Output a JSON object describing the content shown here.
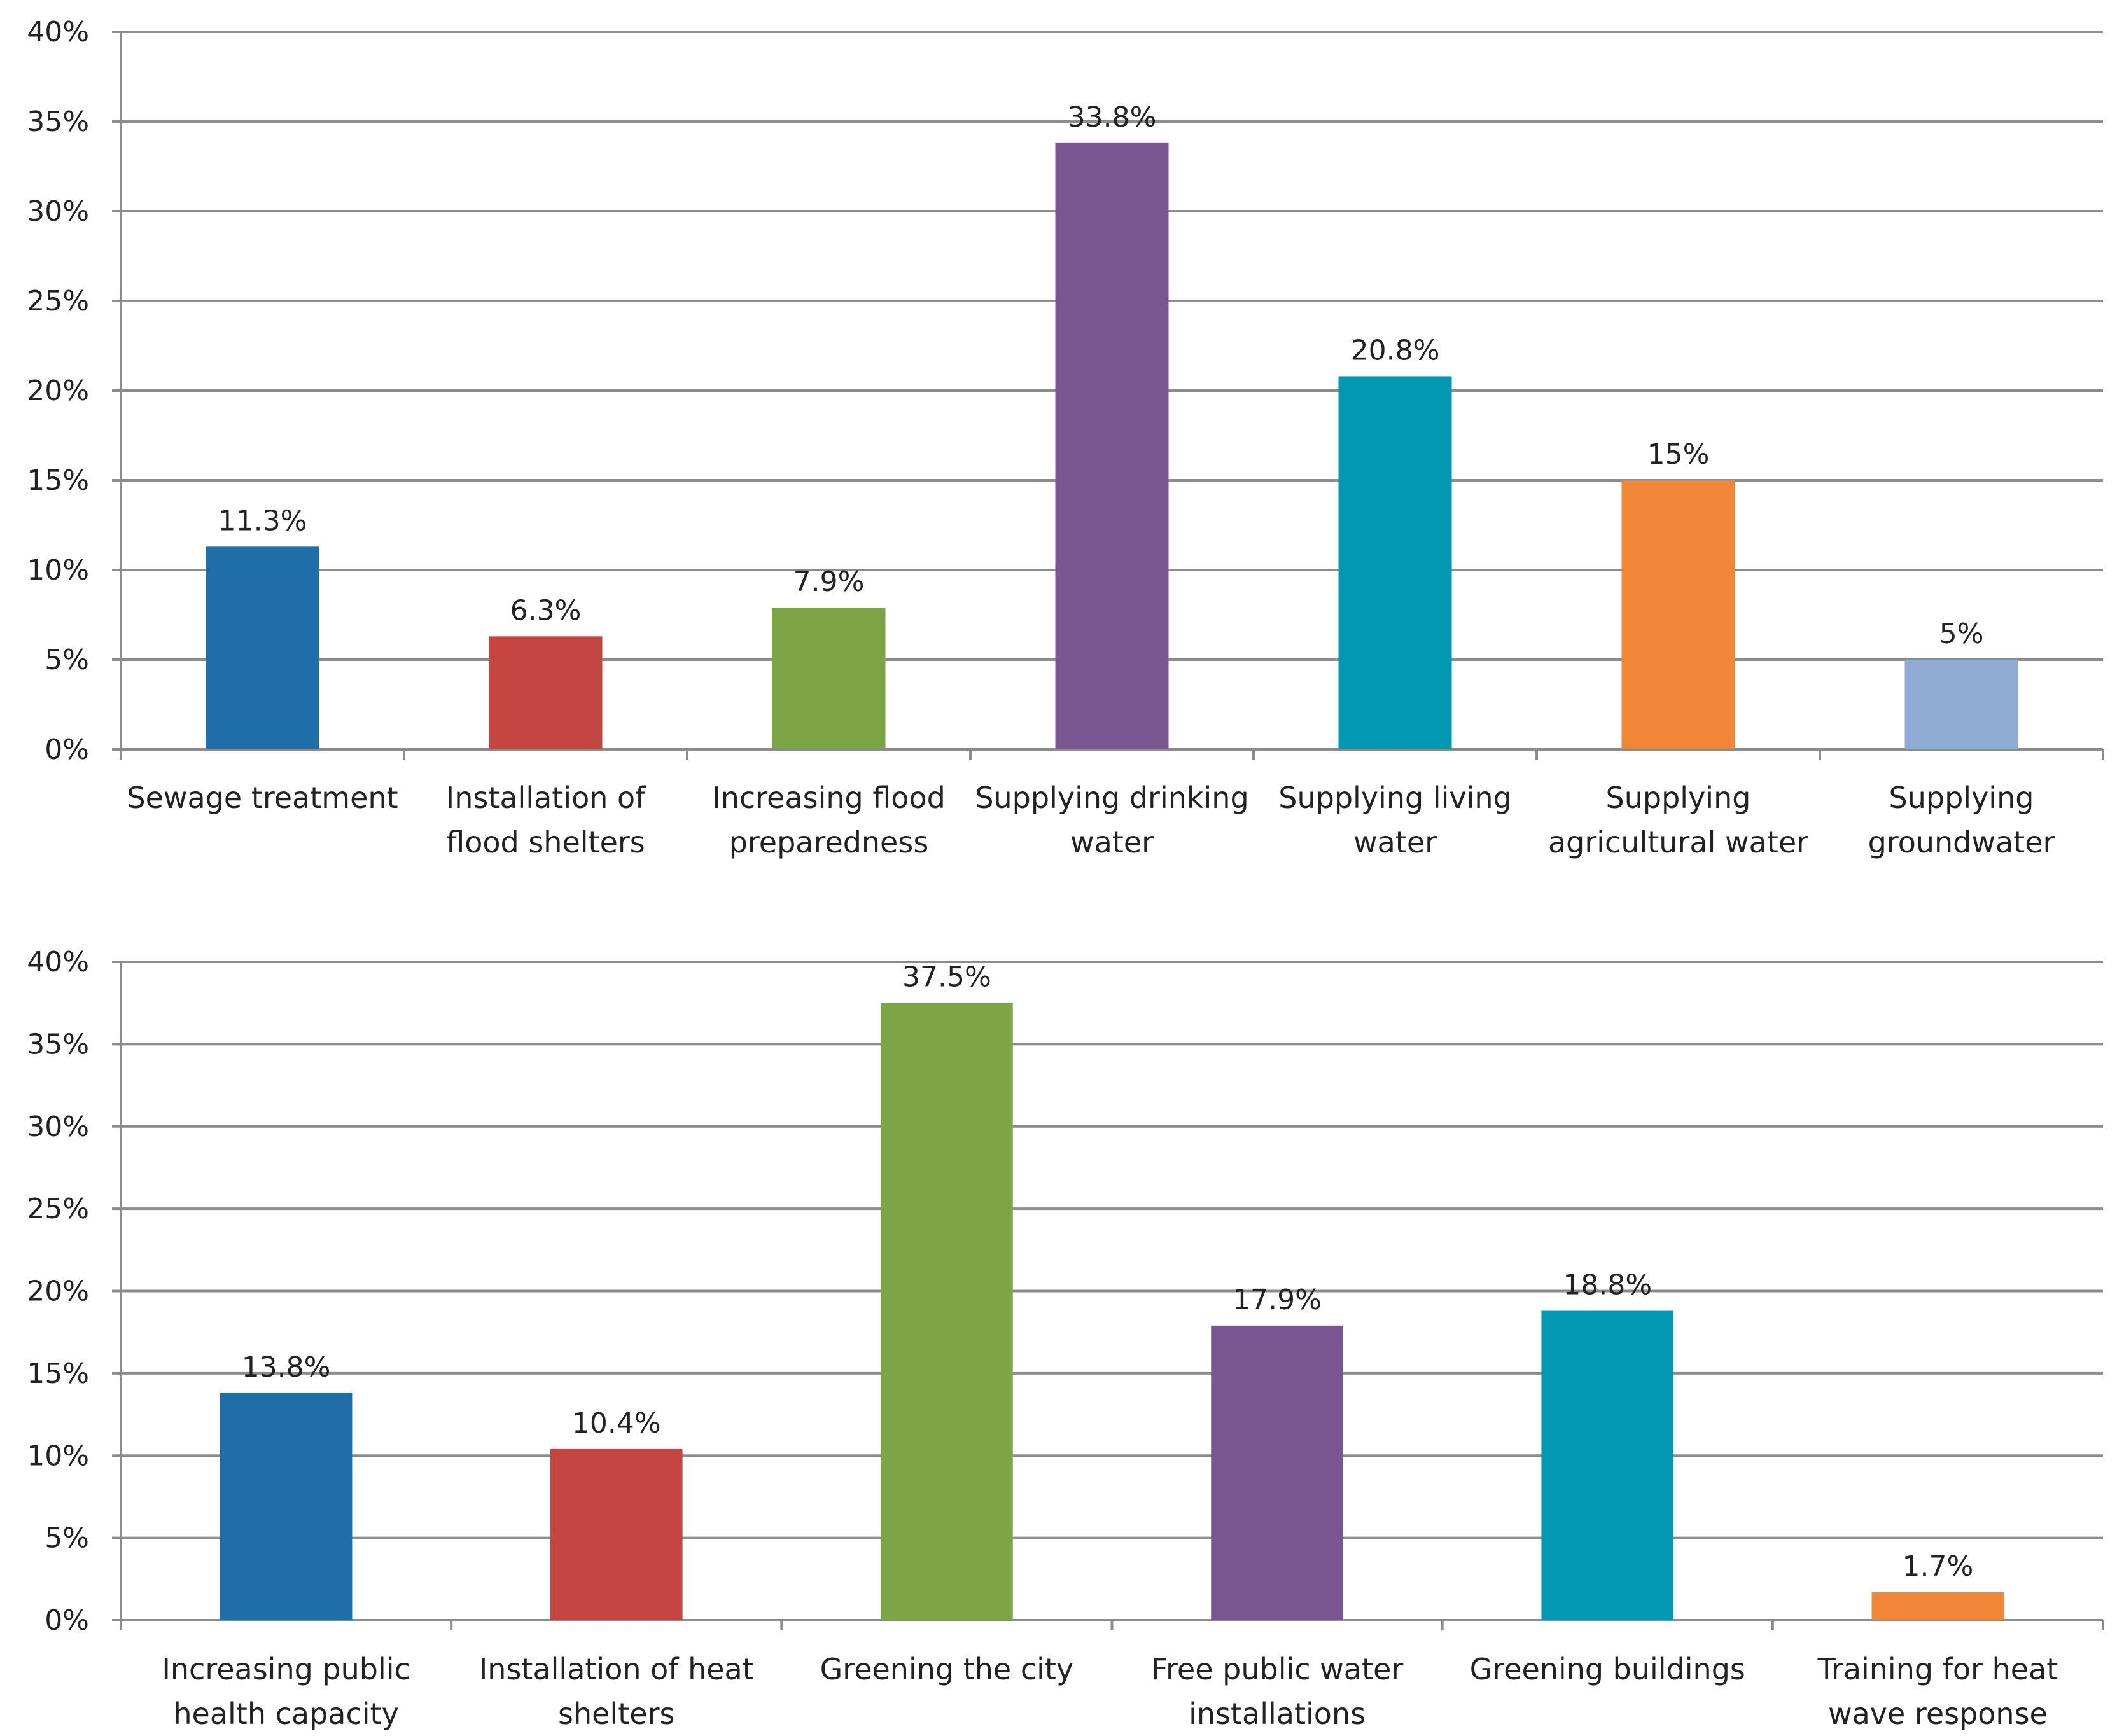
{
  "chart_data": [
    {
      "type": "bar",
      "title": "",
      "xlabel": "",
      "ylabel": "",
      "ylim": [
        0,
        40
      ],
      "yticks": [
        "0%",
        "5%",
        "10%",
        "15%",
        "20%",
        "25%",
        "30%",
        "35%",
        "40%"
      ],
      "grid": true,
      "legend": "none",
      "categories": [
        [
          "Sewage treatment"
        ],
        [
          "Installation of",
          "flood shelters"
        ],
        [
          "Increasing flood",
          "preparedness"
        ],
        [
          "Supplying drinking",
          "water"
        ],
        [
          "Supplying living",
          "water"
        ],
        [
          "Supplying",
          "agricultural water"
        ],
        [
          "Supplying",
          "groundwater"
        ]
      ],
      "values": [
        11.3,
        6.3,
        7.9,
        33.8,
        20.8,
        15,
        5
      ],
      "data_labels": [
        "11.3%",
        "6.3%",
        "7.9%",
        "33.8%",
        "20.8%",
        "15%",
        "5%"
      ],
      "colors": [
        "#1f6ea8",
        "#c44541",
        "#7ca645",
        "#7a5691",
        "#0098b3",
        "#f18637",
        "#8fadd4"
      ]
    },
    {
      "type": "bar",
      "title": "",
      "xlabel": "",
      "ylabel": "",
      "ylim": [
        0,
        40
      ],
      "yticks": [
        "0%",
        "5%",
        "10%",
        "15%",
        "20%",
        "25%",
        "30%",
        "35%",
        "40%"
      ],
      "grid": true,
      "legend": "none",
      "categories": [
        [
          "Increasing public",
          "health capacity"
        ],
        [
          "Installation of heat",
          "shelters"
        ],
        [
          "Greening the city"
        ],
        [
          "Free public water",
          "installations"
        ],
        [
          "Greening buildings"
        ],
        [
          "Training for heat",
          "wave response"
        ]
      ],
      "values": [
        13.8,
        10.4,
        37.5,
        17.9,
        18.8,
        1.7
      ],
      "data_labels": [
        "13.8%",
        "10.4%",
        "37.5%",
        "17.9%",
        "18.8%",
        "1.7%"
      ],
      "colors": [
        "#1f6ea8",
        "#c44541",
        "#7ca645",
        "#7a5691",
        "#0098b3",
        "#f18637"
      ]
    }
  ]
}
